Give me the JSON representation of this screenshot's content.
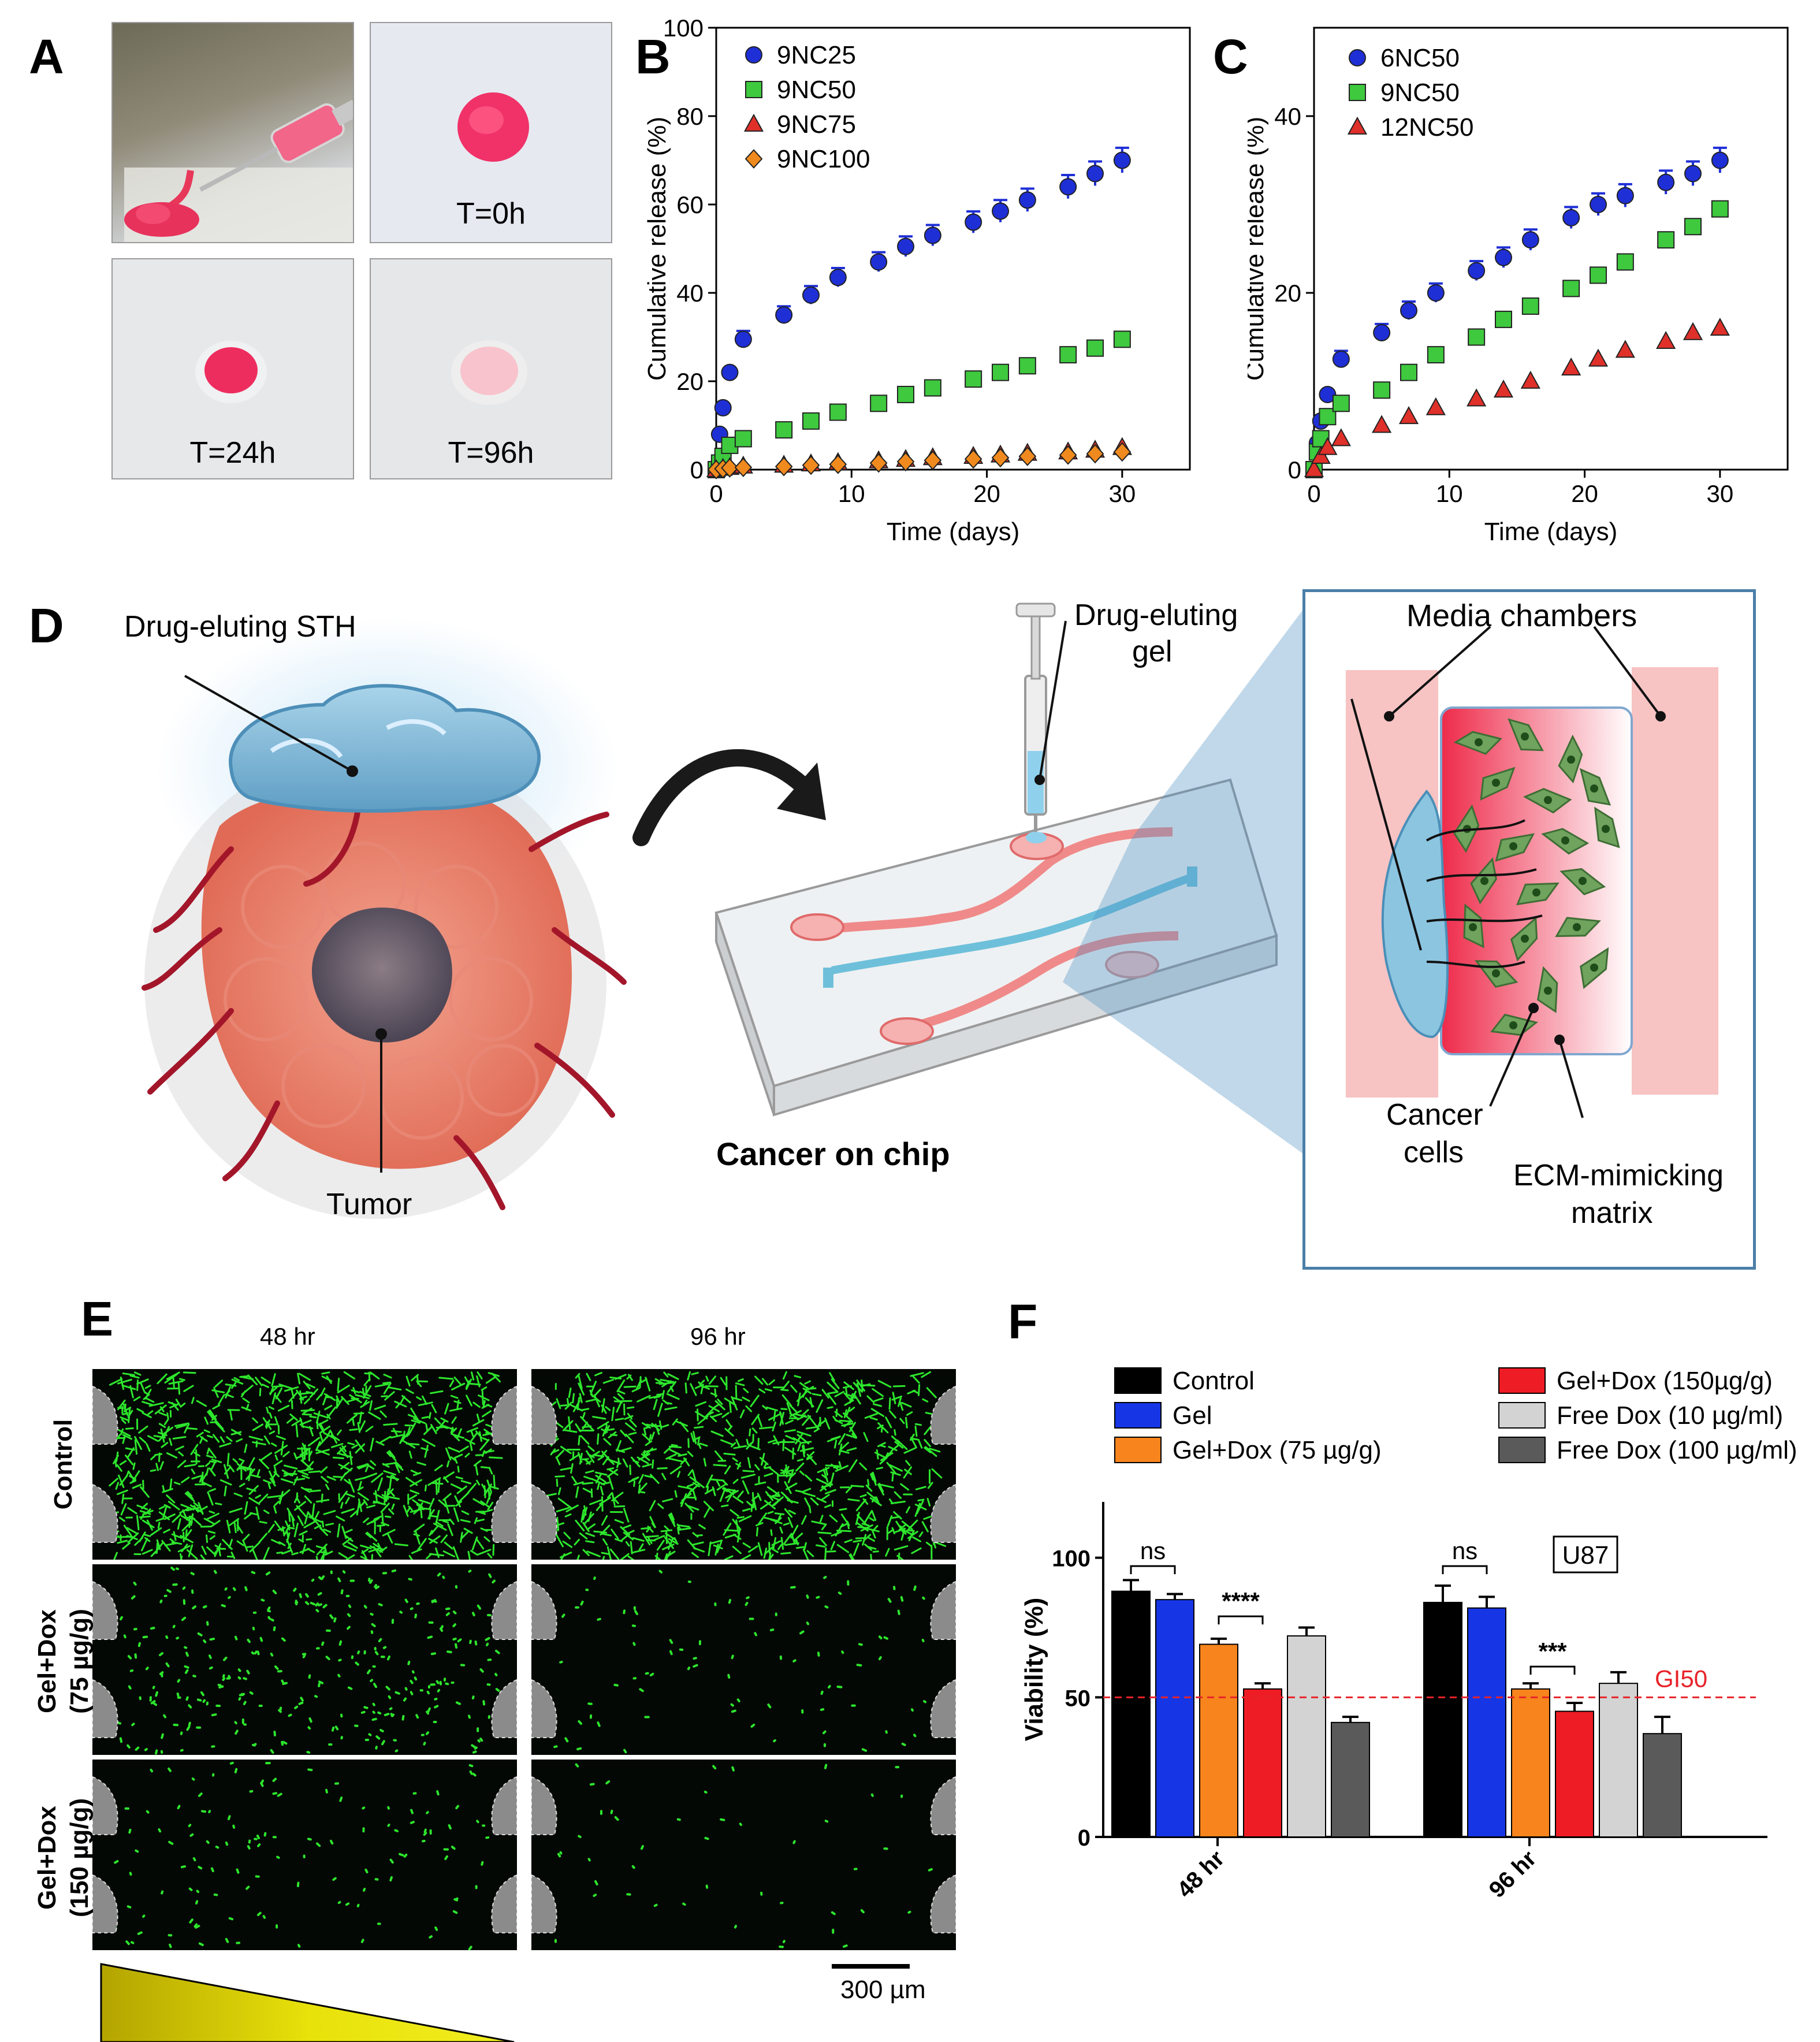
{
  "panel_labels": {
    "a": "A",
    "b": "B",
    "c": "C",
    "d": "D",
    "e": "E",
    "f": "F"
  },
  "panel_a": {
    "t0": "T=0h",
    "t24": "T=24h",
    "t96": "T=96h"
  },
  "chart_data": [
    {
      "id": "B",
      "type": "scatter",
      "xlabel": "Time (days)",
      "ylabel": "Cumulative release (%)",
      "xlim": [
        0,
        35
      ],
      "ylim": [
        0,
        100
      ],
      "xticks": [
        0,
        10,
        20,
        30
      ],
      "yticks": [
        0,
        20,
        40,
        60,
        80,
        100
      ],
      "series": [
        {
          "name": "9NC25",
          "marker": "circle",
          "color": "#1f2fd6",
          "x": [
            0,
            0.25,
            0.5,
            1,
            2,
            5,
            7,
            9,
            12,
            14,
            16,
            19,
            21,
            23,
            26,
            28,
            30
          ],
          "y": [
            0,
            8,
            14,
            22,
            29.5,
            35,
            39.5,
            43.5,
            47,
            50.5,
            53,
            56,
            58.5,
            61,
            64,
            67,
            70
          ]
        },
        {
          "name": "9NC50",
          "marker": "square",
          "color": "#3ec93e",
          "x": [
            0,
            0.25,
            0.5,
            1,
            2,
            5,
            7,
            9,
            12,
            14,
            16,
            19,
            21,
            23,
            26,
            28,
            30
          ],
          "y": [
            0,
            1.5,
            3,
            5.5,
            7,
            9,
            11,
            13,
            15,
            17,
            18.5,
            20.5,
            22,
            23.5,
            26,
            27.5,
            29.5
          ]
        },
        {
          "name": "9NC75",
          "marker": "triangle",
          "color": "#e0302a",
          "x": [
            0,
            0.5,
            1,
            2,
            5,
            7,
            9,
            12,
            14,
            16,
            19,
            21,
            23,
            26,
            28,
            30
          ],
          "y": [
            0,
            0.3,
            0.5,
            0.8,
            1,
            1.3,
            1.6,
            2,
            2.3,
            2.7,
            3,
            3.3,
            3.7,
            4,
            4.4,
            5
          ]
        },
        {
          "name": "9NC100",
          "marker": "diamond",
          "color": "#f08a1e",
          "x": [
            0,
            0.5,
            1,
            2,
            5,
            7,
            9,
            12,
            14,
            16,
            19,
            21,
            23,
            26,
            28,
            30
          ],
          "y": [
            0,
            0.2,
            0.4,
            0.5,
            0.7,
            1,
            1.2,
            1.5,
            1.8,
            2.1,
            2.4,
            2.7,
            3,
            3.3,
            3.6,
            4
          ]
        }
      ]
    },
    {
      "id": "C",
      "type": "scatter",
      "xlabel": "Time (days)",
      "ylabel": "Cumulative release (%)",
      "xlim": [
        0,
        35
      ],
      "ylim": [
        0,
        50
      ],
      "xticks": [
        0,
        10,
        20,
        30
      ],
      "yticks": [
        0,
        20,
        40
      ],
      "series": [
        {
          "name": "6NC50",
          "marker": "circle",
          "color": "#1f2fd6",
          "x": [
            0,
            0.25,
            0.5,
            1,
            2,
            5,
            7,
            9,
            12,
            14,
            16,
            19,
            21,
            23,
            26,
            28,
            30
          ],
          "y": [
            0,
            3,
            5.5,
            8.5,
            12.5,
            15.5,
            18,
            20,
            22.5,
            24,
            26,
            28.5,
            30,
            31,
            32.5,
            33.5,
            35
          ]
        },
        {
          "name": "9NC50",
          "marker": "square",
          "color": "#3ec93e",
          "x": [
            0,
            0.25,
            0.5,
            1,
            2,
            5,
            7,
            9,
            12,
            14,
            16,
            19,
            21,
            23,
            26,
            28,
            30
          ],
          "y": [
            0,
            2,
            3.5,
            6,
            7.5,
            9,
            11,
            13,
            15,
            17,
            18.5,
            20.5,
            22,
            23.5,
            26,
            27.5,
            29.5
          ]
        },
        {
          "name": "12NC50",
          "marker": "triangle",
          "color": "#e0302a",
          "x": [
            0,
            0.5,
            1,
            2,
            5,
            7,
            9,
            12,
            14,
            16,
            19,
            21,
            23,
            26,
            28,
            30
          ],
          "y": [
            0,
            1.5,
            2.5,
            3.5,
            5,
            6,
            7,
            8,
            9,
            10,
            11.5,
            12.5,
            13.5,
            14.5,
            15.5,
            16
          ]
        }
      ]
    },
    {
      "id": "F",
      "type": "bar",
      "ylabel": "Viability (%)",
      "ylim": [
        0,
        120
      ],
      "yticks": [
        0,
        50,
        100
      ],
      "categories": [
        "48 hr",
        "96 hr"
      ],
      "series": [
        {
          "name": "Control",
          "color": "#000000",
          "values": [
            88,
            84
          ],
          "err": [
            4,
            6
          ]
        },
        {
          "name": "Gel",
          "color": "#1636e6",
          "values": [
            85,
            82
          ],
          "err": [
            2,
            4
          ]
        },
        {
          "name": "Gel+Dox (75 µg/g)",
          "color": "#f7841c",
          "values": [
            69,
            53
          ],
          "err": [
            2,
            2
          ]
        },
        {
          "name": "Gel+Dox (150µg/g)",
          "color": "#ee1c24",
          "values": [
            53,
            45
          ],
          "err": [
            2,
            3
          ]
        },
        {
          "name": "Free Dox (10 µg/ml)",
          "color": "#d3d3d3",
          "values": [
            72,
            55
          ],
          "err": [
            3,
            4
          ]
        },
        {
          "name": "Free Dox (100 µg/ml)",
          "color": "#5a5a5a",
          "values": [
            41,
            37
          ],
          "err": [
            2,
            6
          ]
        }
      ],
      "reference_line": {
        "value": 50,
        "label": "GI50",
        "color": "#e8232a"
      },
      "annotations": [
        "ns",
        "****",
        "ns",
        "***"
      ],
      "cell_line": "U87"
    }
  ],
  "panel_d": {
    "drug_sth": "Drug-eluting STH",
    "tumor": "Tumor",
    "drug_gel_1": "Drug-eluting",
    "drug_gel_2": "gel",
    "chip_title": "Cancer on chip",
    "media": "Media chambers",
    "cancer_1": "Cancer",
    "cancer_2": "cells",
    "ecm_1": "ECM-mimicking",
    "ecm_2": "matrix"
  },
  "panel_e": {
    "col1": "48 hr",
    "col2": "96 hr",
    "row1": "Control",
    "row2a": "Gel+Dox",
    "row2b": "(75 µg/g)",
    "row3a": "Gel+Dox",
    "row3b": "(150 µg/g)",
    "scale": "300 µm"
  }
}
